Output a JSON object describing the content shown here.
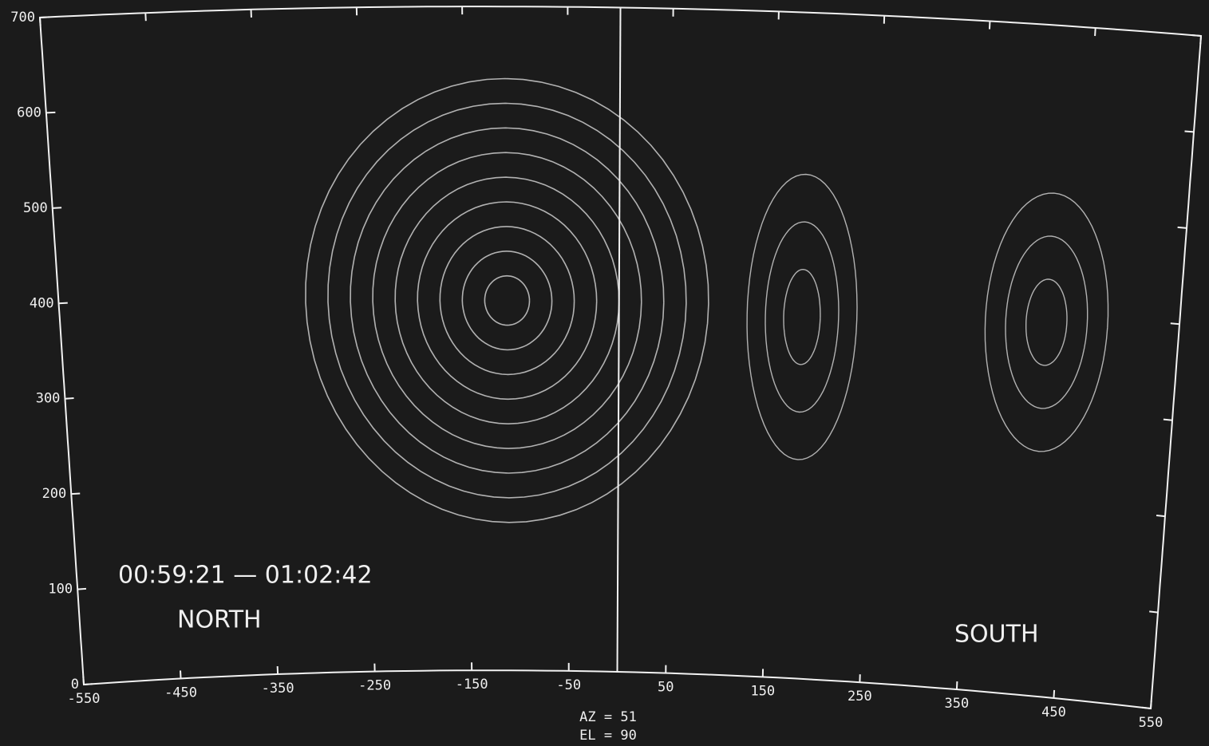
{
  "chart_data": {
    "type": "contour",
    "title": "00:59:21 — 01:02:42",
    "annotations": [
      "NORTH",
      "SOUTH"
    ],
    "xlabel": [
      "AZ = 51",
      "EL = 90"
    ],
    "xlim": [
      -550,
      550
    ],
    "ylim": [
      0,
      700
    ],
    "xticks": [
      -550,
      -450,
      -350,
      -250,
      -150,
      -50,
      50,
      150,
      250,
      350,
      450,
      550
    ],
    "yticks": [
      0,
      100,
      200,
      300,
      400,
      500,
      600,
      700
    ],
    "color": "#f2f2f2",
    "grid": false
  }
}
